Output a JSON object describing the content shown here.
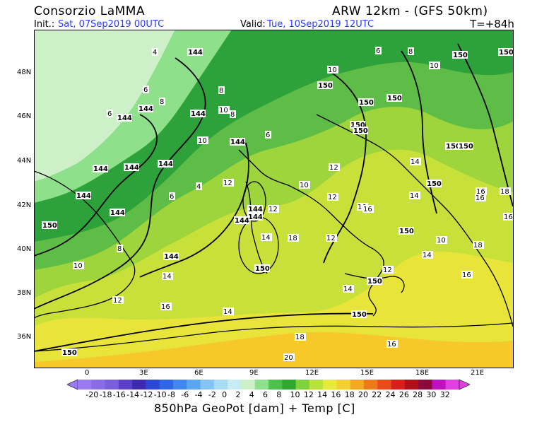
{
  "header": {
    "org": "Consorzio LaMMA",
    "model": "ARW 12km - (GFS 50km)",
    "init_label": "Init.:",
    "init_value": "Sat, 07Sep2019 00UTC",
    "valid_label": "Valid:",
    "valid_value": "Tue, 10Sep2019 12UTC",
    "lead": "T=+84h"
  },
  "axes": {
    "lat_labels": [
      "48N",
      "46N",
      "44N",
      "42N",
      "40N",
      "38N",
      "36N"
    ],
    "lon_labels": [
      "0",
      "3E",
      "6E",
      "9E",
      "12E",
      "15E",
      "18E",
      "21E"
    ]
  },
  "colorbar": {
    "labels": [
      "-20",
      "-18",
      "-16",
      "-14",
      "-12",
      "-10",
      "-8",
      "-6",
      "-4",
      "-2",
      "0",
      "2",
      "4",
      "6",
      "8",
      "10",
      "12",
      "14",
      "16",
      "18",
      "20",
      "22",
      "24",
      "26",
      "28",
      "30",
      "32"
    ],
    "colors": [
      "#9b7cf0",
      "#8a6de6",
      "#7a5fdc",
      "#5b3fc8",
      "#3d2ab0",
      "#2a47d6",
      "#2f66e8",
      "#3f86ee",
      "#5aa6f2",
      "#84c4f4",
      "#a8dcf2",
      "#c8ecf4",
      "#cdf0c8",
      "#8ee08a",
      "#4cc24c",
      "#2ea82e",
      "#7ed23a",
      "#b8e23a",
      "#e8ea3a",
      "#f6d030",
      "#f4a822",
      "#ee7a1c",
      "#e84a18",
      "#d8201a",
      "#b0101a",
      "#8a0a40",
      "#c010c0",
      "#e040e0"
    ],
    "caption": "850hPa GeoPot [dam] + Temp [C]"
  },
  "map_labels": {
    "geopot": [
      {
        "t": "144"
      },
      {
        "t": "144"
      },
      {
        "t": "144"
      },
      {
        "t": "144"
      },
      {
        "t": "144"
      },
      {
        "t": "144"
      },
      {
        "t": "144"
      },
      {
        "t": "144"
      },
      {
        "t": "144"
      },
      {
        "t": "144"
      },
      {
        "t": "144"
      },
      {
        "t": "144"
      },
      {
        "t": "144"
      },
      {
        "t": "144"
      },
      {
        "t": "150"
      },
      {
        "t": "150"
      },
      {
        "t": "150"
      },
      {
        "t": "150"
      },
      {
        "t": "150"
      },
      {
        "t": "150"
      },
      {
        "t": "150"
      },
      {
        "t": "150"
      },
      {
        "t": "150"
      },
      {
        "t": "150"
      },
      {
        "t": "150"
      },
      {
        "t": "150"
      },
      {
        "t": "150"
      },
      {
        "t": "150"
      },
      {
        "t": "150"
      },
      {
        "t": "150"
      }
    ],
    "temp": [
      "4",
      "6",
      "8",
      "6",
      "10",
      "8",
      "10",
      "6",
      "8",
      "10",
      "12",
      "14",
      "16",
      "18",
      "20",
      "16",
      "18",
      "14",
      "12",
      "10",
      "8",
      "6",
      "4",
      "16",
      "14",
      "12",
      "10",
      "14",
      "16",
      "18",
      "16",
      "12",
      "14",
      "12",
      "10",
      "8",
      "6",
      "10",
      "12",
      "14",
      "16",
      "18",
      "16",
      "14",
      "12",
      "10"
    ]
  }
}
